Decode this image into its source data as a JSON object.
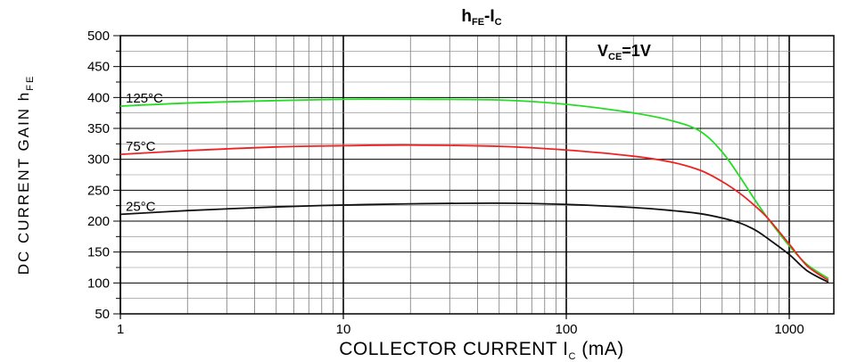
{
  "chart_data": {
    "type": "line",
    "title": {
      "main": "h",
      "main_sub": "FE",
      "sep": "-I",
      "sep_sub": "C"
    },
    "xlabel": {
      "main": "COLLECTOR CURRENT I",
      "sub": "C",
      "suffix": " (mA)"
    },
    "ylabel": {
      "main": "DC CURRENT GAIN h",
      "sub": "FE"
    },
    "x_scale": "log",
    "xlim": [
      1,
      1600
    ],
    "ylim": [
      50,
      500
    ],
    "x_ticks": [
      {
        "v": 1,
        "label": "1"
      },
      {
        "v": 10,
        "label": "10"
      },
      {
        "v": 100,
        "label": "100"
      },
      {
        "v": 1000,
        "label": "1000"
      }
    ],
    "y_ticks": [
      {
        "v": 50,
        "label": "50"
      },
      {
        "v": 100,
        "label": "100"
      },
      {
        "v": 150,
        "label": "150"
      },
      {
        "v": 200,
        "label": "200"
      },
      {
        "v": 250,
        "label": "250"
      },
      {
        "v": 300,
        "label": "300"
      },
      {
        "v": 350,
        "label": "350"
      },
      {
        "v": 400,
        "label": "400"
      },
      {
        "v": 450,
        "label": "450"
      },
      {
        "v": 500,
        "label": "500"
      }
    ],
    "grid": true,
    "annotation": {
      "main": "V",
      "sub": "CE",
      "suffix": "=1V"
    },
    "series": [
      {
        "name": "125°C",
        "color": "#22dd22",
        "x": [
          1,
          2,
          5,
          10,
          20,
          50,
          100,
          200,
          300,
          400,
          500,
          600,
          700,
          800,
          1000,
          1200,
          1500
        ],
        "y": [
          386,
          391,
          395,
          397,
          397,
          396,
          389,
          375,
          362,
          345,
          312,
          272,
          235,
          205,
          160,
          130,
          107
        ]
      },
      {
        "name": "75°C",
        "color": "#ee2222",
        "x": [
          1,
          2,
          5,
          10,
          20,
          50,
          100,
          200,
          300,
          400,
          500,
          600,
          700,
          800,
          1000,
          1200,
          1500
        ],
        "y": [
          308,
          314,
          320,
          322,
          323,
          321,
          315,
          305,
          295,
          282,
          264,
          245,
          225,
          205,
          163,
          128,
          104
        ]
      },
      {
        "name": "25°C",
        "color": "#111111",
        "x": [
          1,
          2,
          5,
          10,
          20,
          50,
          100,
          200,
          300,
          400,
          500,
          600,
          700,
          800,
          1000,
          1200,
          1500
        ],
        "y": [
          211,
          217,
          223,
          226,
          228,
          229,
          227,
          222,
          217,
          212,
          205,
          197,
          186,
          172,
          146,
          120,
          101
        ]
      }
    ]
  }
}
